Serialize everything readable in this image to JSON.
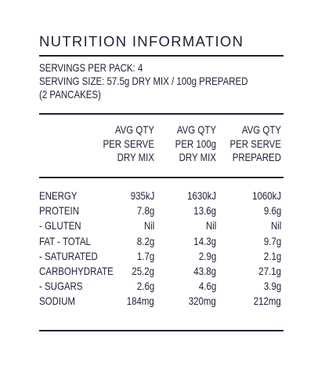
{
  "title": "NUTRITION INFORMATION",
  "servings": {
    "per_pack": "SERVINGS PER PACK: 4",
    "size_line1": "SERVING SIZE: 57.5g DRY MIX / 100g PREPARED",
    "size_line2": "(2 PANCAKES)"
  },
  "columns": [
    {
      "lines": [
        "AVG QTY",
        "PER SERVE",
        "DRY MIX"
      ]
    },
    {
      "lines": [
        "AVG QTY",
        "PER 100g",
        "DRY MIX"
      ]
    },
    {
      "lines": [
        "AVG QTY",
        "PER SERVE",
        "PREPARED"
      ]
    }
  ],
  "rows": [
    {
      "label": "ENERGY",
      "values": [
        "935kJ",
        "1630kJ",
        "1060kJ"
      ]
    },
    {
      "label": "PROTEIN",
      "values": [
        "7.8g",
        "13.6g",
        "9.6g"
      ]
    },
    {
      "label": "- GLUTEN",
      "values": [
        "Nil",
        "Nil",
        "Nil"
      ]
    },
    {
      "label": "FAT - TOTAL",
      "values": [
        "8.2g",
        "14.3g",
        "9.7g"
      ]
    },
    {
      "label": "- SATURATED",
      "values": [
        "1.7g",
        "2.9g",
        "2.1g"
      ]
    },
    {
      "label": "CARBOHYDRATE",
      "values": [
        "25.2g",
        "43.8g",
        "27.1g"
      ]
    },
    {
      "label": "- SUGARS",
      "values": [
        "2.6g",
        "4.6g",
        "3.9g"
      ]
    },
    {
      "label": "SODIUM",
      "values": [
        "184mg",
        "320mg",
        "212mg"
      ]
    }
  ]
}
